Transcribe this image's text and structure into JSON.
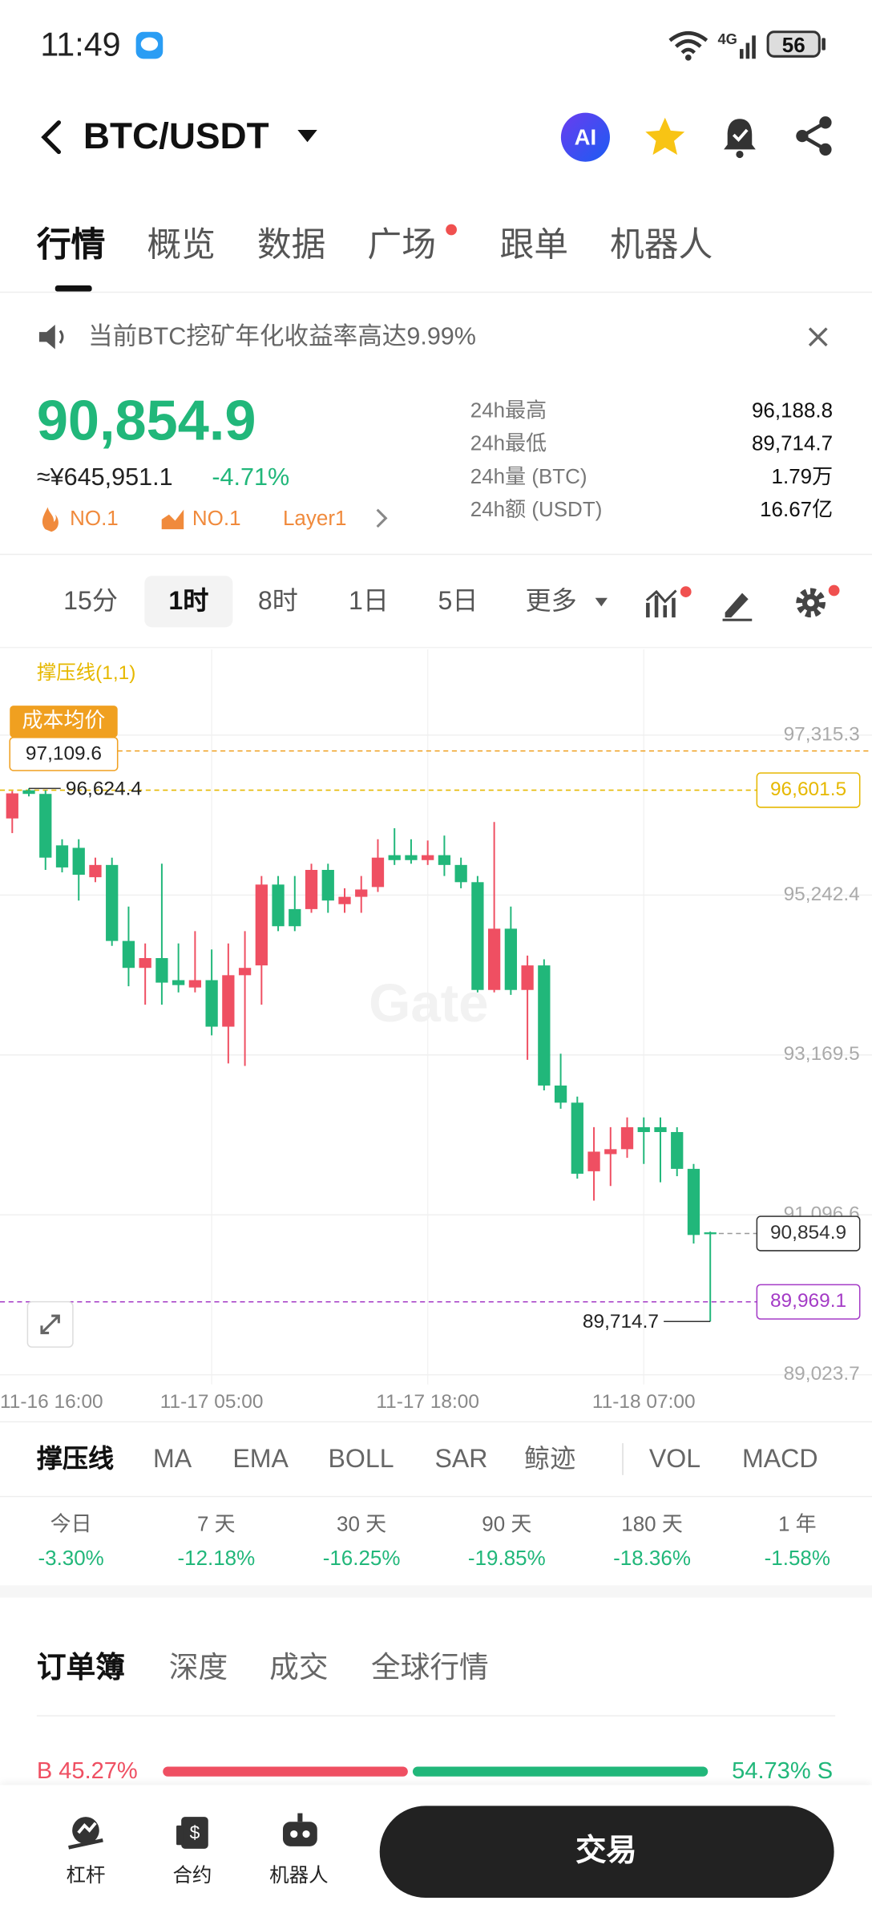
{
  "status_bar": {
    "time": "11:49",
    "network": "4G",
    "battery": "56"
  },
  "header": {
    "pair": "BTC/USDT",
    "ai_badge": "AI"
  },
  "tabs": [
    "行情",
    "概览",
    "数据",
    "广场",
    "跟单",
    "机器人"
  ],
  "active_tab": 0,
  "announcement": "当前BTC挖矿年化收益率高达9.99%",
  "price": {
    "last": "90,854.9",
    "cny": "≈¥645,951.1",
    "change": "-4.71%",
    "tags": [
      "NO.1",
      "NO.1",
      "Layer1"
    ]
  },
  "stats": [
    {
      "label": "24h最高",
      "value": "96,188.8"
    },
    {
      "label": "24h最低",
      "value": "89,714.7"
    },
    {
      "label": "24h量 (BTC)",
      "value": "1.79万"
    },
    {
      "label": "24h额 (USDT)",
      "value": "16.67亿"
    }
  ],
  "intervals": [
    "15分",
    "1时",
    "8时",
    "1日",
    "5日",
    "更多"
  ],
  "active_interval": 1,
  "chart_data": {
    "type": "candlestick",
    "indicator_label": "撑压线(1,1)",
    "watermark": "Gate",
    "ylim": [
      88899,
      98427
    ],
    "yticks": [
      {
        "value": 89023.7,
        "label": "89,023.7"
      },
      {
        "value": 91096.6,
        "label": "91,096.6"
      },
      {
        "value": 93169.5,
        "label": "93,169.5"
      },
      {
        "value": 95242.4,
        "label": "95,242.4"
      },
      {
        "value": 97315.3,
        "label": "97,315.3"
      }
    ],
    "x_labels": [
      "11-16 16:00",
      "11-17 05:00",
      "11-17 18:00",
      "11-18 07:00"
    ],
    "colors": {
      "up": "#ef4f62",
      "down": "#21b77a"
    },
    "cost_line": {
      "label": "成本均价",
      "value": 97109.6,
      "value_label": "97,109.6",
      "color": "#f0a020"
    },
    "high_marker": {
      "value": 96624.4,
      "label": "96,624.4"
    },
    "low_marker": {
      "value": 89714.7,
      "label": "89,714.7"
    },
    "price_lines": [
      {
        "value": 96601.5,
        "label": "96,601.5",
        "color": "#e6b800"
      },
      {
        "value": 90854.9,
        "label": "90,854.9",
        "color": "#333333"
      },
      {
        "value": 89969.1,
        "label": "89,969.1",
        "color": "#a43bc6"
      }
    ],
    "candles": [
      {
        "o": 96235,
        "h": 96590,
        "l": 96045,
        "c": 96560
      },
      {
        "o": 96600,
        "h": 96624.4,
        "l": 96521,
        "c": 96553
      },
      {
        "o": 96553,
        "h": 96600,
        "l": 95568,
        "c": 95727
      },
      {
        "o": 95886,
        "h": 95965,
        "l": 95536,
        "c": 95600
      },
      {
        "o": 95854,
        "h": 95965,
        "l": 95171,
        "c": 95505
      },
      {
        "o": 95473,
        "h": 95727,
        "l": 95409,
        "c": 95632
      },
      {
        "o": 95632,
        "h": 95727,
        "l": 94584,
        "c": 94647
      },
      {
        "o": 94647,
        "h": 95092,
        "l": 94060,
        "c": 94298
      },
      {
        "o": 94298,
        "h": 94615,
        "l": 93821,
        "c": 94425
      },
      {
        "o": 94425,
        "h": 95648,
        "l": 93821,
        "c": 94107
      },
      {
        "o": 94139,
        "h": 94615,
        "l": 93980,
        "c": 94075
      },
      {
        "o": 94044,
        "h": 94774,
        "l": 93980,
        "c": 94139
      },
      {
        "o": 94139,
        "h": 94536,
        "l": 93424,
        "c": 93536
      },
      {
        "o": 93536,
        "h": 94615,
        "l": 93059,
        "c": 94203
      },
      {
        "o": 94203,
        "h": 94774,
        "l": 93027,
        "c": 94298
      },
      {
        "o": 94330,
        "h": 95489,
        "l": 93821,
        "c": 95378
      },
      {
        "o": 95378,
        "h": 95489,
        "l": 94774,
        "c": 94838
      },
      {
        "o": 95060,
        "h": 95489,
        "l": 94774,
        "c": 94838
      },
      {
        "o": 95060,
        "h": 95648,
        "l": 95012,
        "c": 95568
      },
      {
        "o": 95568,
        "h": 95648,
        "l": 95012,
        "c": 95171
      },
      {
        "o": 95124,
        "h": 95330,
        "l": 95012,
        "c": 95219
      },
      {
        "o": 95219,
        "h": 95489,
        "l": 95012,
        "c": 95314
      },
      {
        "o": 95346,
        "h": 95965,
        "l": 95282,
        "c": 95727
      },
      {
        "o": 95759,
        "h": 96108,
        "l": 95632,
        "c": 95695
      },
      {
        "o": 95759,
        "h": 95965,
        "l": 95648,
        "c": 95695
      },
      {
        "o": 95695,
        "h": 95949,
        "l": 95632,
        "c": 95759
      },
      {
        "o": 95759,
        "h": 96013,
        "l": 95489,
        "c": 95632
      },
      {
        "o": 95632,
        "h": 95727,
        "l": 95330,
        "c": 95409
      },
      {
        "o": 95409,
        "h": 95489,
        "l": 93980,
        "c": 94012
      },
      {
        "o": 94012,
        "h": 96188.8,
        "l": 93980,
        "c": 94806
      },
      {
        "o": 94806,
        "h": 95092,
        "l": 93948,
        "c": 94012
      },
      {
        "o": 94012,
        "h": 94457,
        "l": 93107,
        "c": 94330
      },
      {
        "o": 94330,
        "h": 94409,
        "l": 92710,
        "c": 92773
      },
      {
        "o": 92773,
        "h": 93186,
        "l": 92472,
        "c": 92551
      },
      {
        "o": 92551,
        "h": 92630,
        "l": 91566,
        "c": 91630
      },
      {
        "o": 91662,
        "h": 92233,
        "l": 91281,
        "c": 91916
      },
      {
        "o": 91884,
        "h": 92233,
        "l": 91471,
        "c": 91948
      },
      {
        "o": 91948,
        "h": 92360,
        "l": 91836,
        "c": 92233
      },
      {
        "o": 92233,
        "h": 92360,
        "l": 91757,
        "c": 92170
      },
      {
        "o": 92233,
        "h": 92360,
        "l": 91519,
        "c": 92170
      },
      {
        "o": 92170,
        "h": 92233,
        "l": 91598,
        "c": 91693
      },
      {
        "o": 91693,
        "h": 91757,
        "l": 90725,
        "c": 90836
      },
      {
        "o": 90870,
        "h": 90880,
        "l": 89714.7,
        "c": 90854.9
      }
    ]
  },
  "indicators": [
    "撑压线",
    "MA",
    "EMA",
    "BOLL",
    "SAR",
    "鲸迹",
    "VOL",
    "MACD"
  ],
  "performance": [
    {
      "period": "今日",
      "change": "-3.30%"
    },
    {
      "period": "7 天",
      "change": "-12.18%"
    },
    {
      "period": "30 天",
      "change": "-16.25%"
    },
    {
      "period": "90 天",
      "change": "-19.85%"
    },
    {
      "period": "180 天",
      "change": "-18.36%"
    },
    {
      "period": "1 年",
      "change": "-1.58%"
    }
  ],
  "orderbook": {
    "tabs": [
      "订单簿",
      "深度",
      "成交",
      "全球行情"
    ],
    "buy_label": "B 45.27%",
    "sell_label": "54.73% S",
    "buy_ratio": 45.27,
    "sell_ratio": 54.73
  },
  "bottom_nav": {
    "items": [
      "杠杆",
      "合约",
      "机器人"
    ],
    "trade": "交易"
  }
}
